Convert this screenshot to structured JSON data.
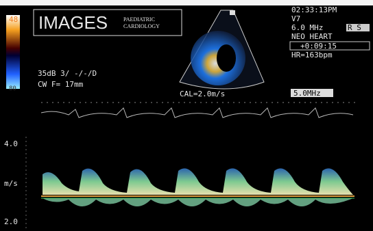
{
  "header": {
    "title": "IMAGES",
    "logo_line1": "PAEDIATRIC",
    "logo_line2": "CARDIOLOGY"
  },
  "colorbar": {
    "top": "48",
    "bottom": "80"
  },
  "settings": {
    "time": "02:33:13PM",
    "probe": "V7",
    "frequency": "6.0 MHz",
    "mode": "R S",
    "preset": "NEO HEART",
    "elapsed": "+0:09:15",
    "heart_rate": "HR=163bpm"
  },
  "acquisition": {
    "gain": "35dB 3/ -/-/D",
    "focus": "CW F= 17mm"
  },
  "calibration": "CAL=2.0m/s",
  "doppler_frequency": "5.0MHz",
  "scale": {
    "top": "4.0",
    "unit": "m/s",
    "bottom": "2.0"
  }
}
